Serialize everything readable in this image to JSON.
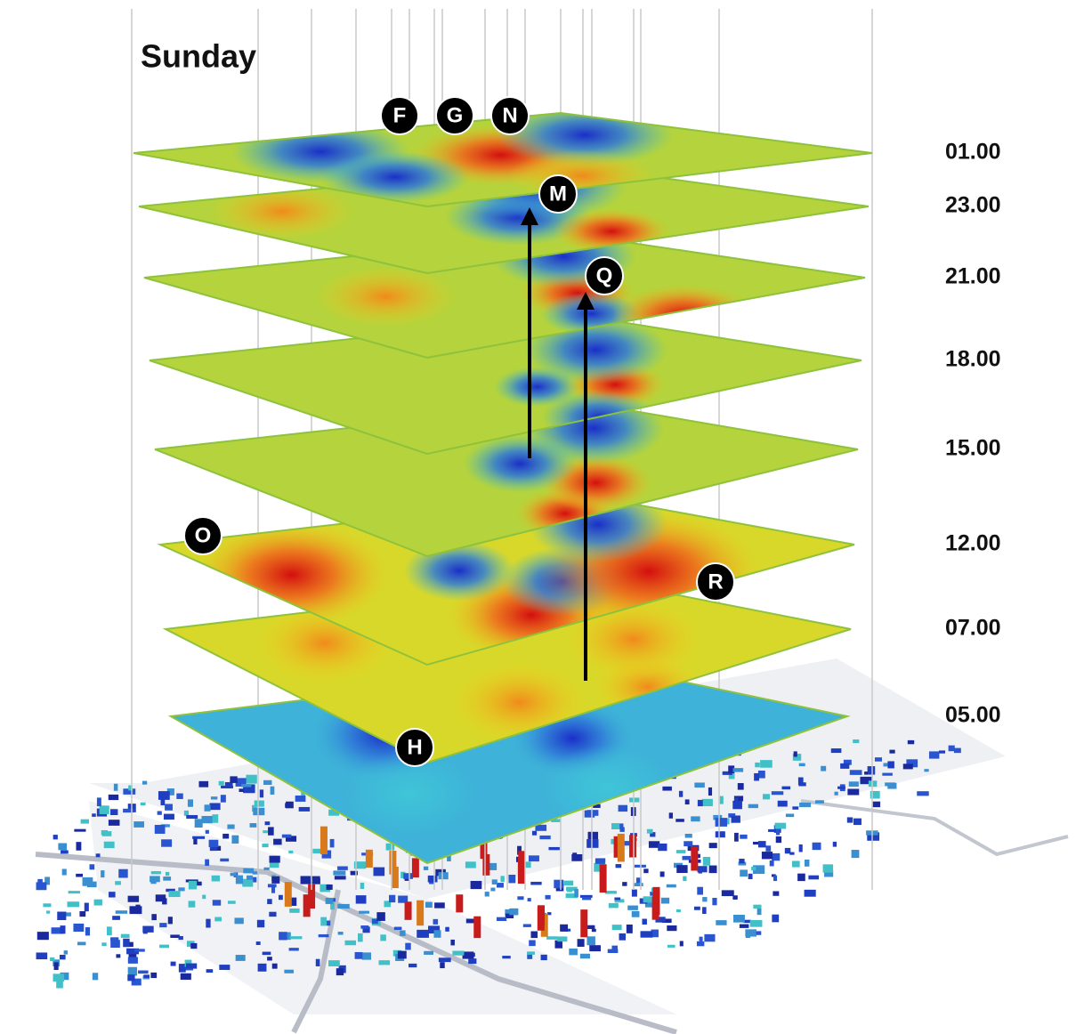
{
  "title": "Sunday",
  "layers": [
    "01.00",
    "23.00",
    "21.00",
    "18.00",
    "15.00",
    "12.00",
    "07.00",
    "05.00"
  ],
  "markers": [
    "F",
    "G",
    "N",
    "M",
    "Q",
    "O",
    "R",
    "H"
  ]
}
